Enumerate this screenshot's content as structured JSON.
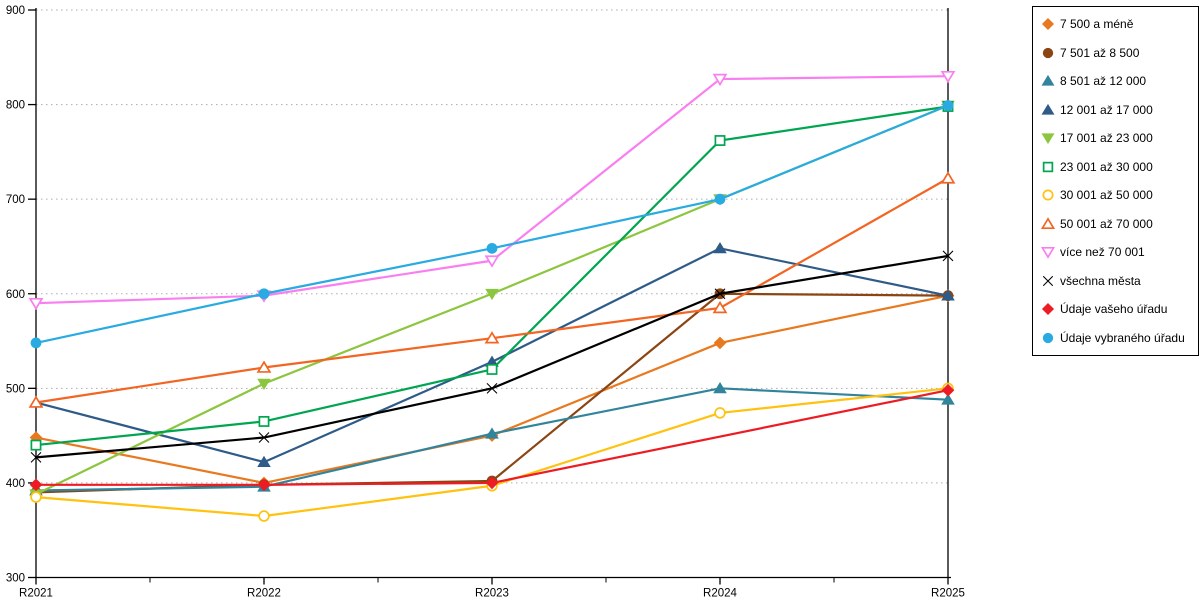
{
  "chart_data": {
    "type": "line",
    "categories": [
      "R2021",
      "R2022",
      "R2023",
      "R2024",
      "R2025"
    ],
    "ylim": [
      300,
      900
    ],
    "yticks": [
      300,
      400,
      500,
      600,
      700,
      800,
      900
    ],
    "grid": "horizontal-dotted",
    "legend_position": "right",
    "series": [
      {
        "name": "7 500 a méně",
        "color": "#E8791E",
        "marker": "diamond",
        "fill": true,
        "values": [
          448,
          400,
          450,
          548,
          598
        ]
      },
      {
        "name": "7 501 až 8 500",
        "color": "#8B4513",
        "marker": "circle",
        "fill": true,
        "values": [
          390,
          398,
          402,
          600,
          598
        ]
      },
      {
        "name": "8 501 až 12 000",
        "color": "#31849B",
        "marker": "triangle-up",
        "fill": true,
        "values": [
          392,
          396,
          452,
          500,
          488
        ]
      },
      {
        "name": "12 001 až 17 000",
        "color": "#2E5B88",
        "marker": "triangle-up",
        "fill": true,
        "values": [
          485,
          422,
          528,
          648,
          598
        ]
      },
      {
        "name": "17 001 až 23 000",
        "color": "#8CC63E",
        "marker": "triangle-down",
        "fill": true,
        "values": [
          388,
          505,
          600,
          700,
          799
        ]
      },
      {
        "name": "23 001 až 30 000",
        "color": "#00A550",
        "marker": "square",
        "fill": false,
        "values": [
          440,
          465,
          520,
          762,
          798
        ]
      },
      {
        "name": "30 001 až 50 000",
        "color": "#FFC20E",
        "marker": "circle",
        "fill": false,
        "values": [
          385,
          365,
          397,
          474,
          500
        ]
      },
      {
        "name": "50 001 až 70 000",
        "color": "#F26522",
        "marker": "triangle-up",
        "fill": false,
        "values": [
          485,
          522,
          553,
          585,
          722
        ]
      },
      {
        "name": "více než 70 001",
        "color": "#F97FF0",
        "marker": "triangle-down",
        "fill": false,
        "values": [
          590,
          598,
          635,
          827,
          830
        ]
      },
      {
        "name": "všechna města",
        "color": "#000000",
        "marker": "x",
        "fill": false,
        "values": [
          427,
          448,
          500,
          600,
          640
        ]
      },
      {
        "name": "Údaje vašeho úřadu",
        "color": "#ED1C24",
        "marker": "diamond",
        "fill": true,
        "values": [
          398,
          398,
          400,
          null,
          498
        ]
      },
      {
        "name": "Údaje vybraného úřadu",
        "color": "#29ABE2",
        "marker": "circle",
        "fill": true,
        "values": [
          548,
          600,
          648,
          700,
          799
        ]
      }
    ],
    "axis_color": "#000000",
    "gridline_color": "#ADADAD"
  }
}
